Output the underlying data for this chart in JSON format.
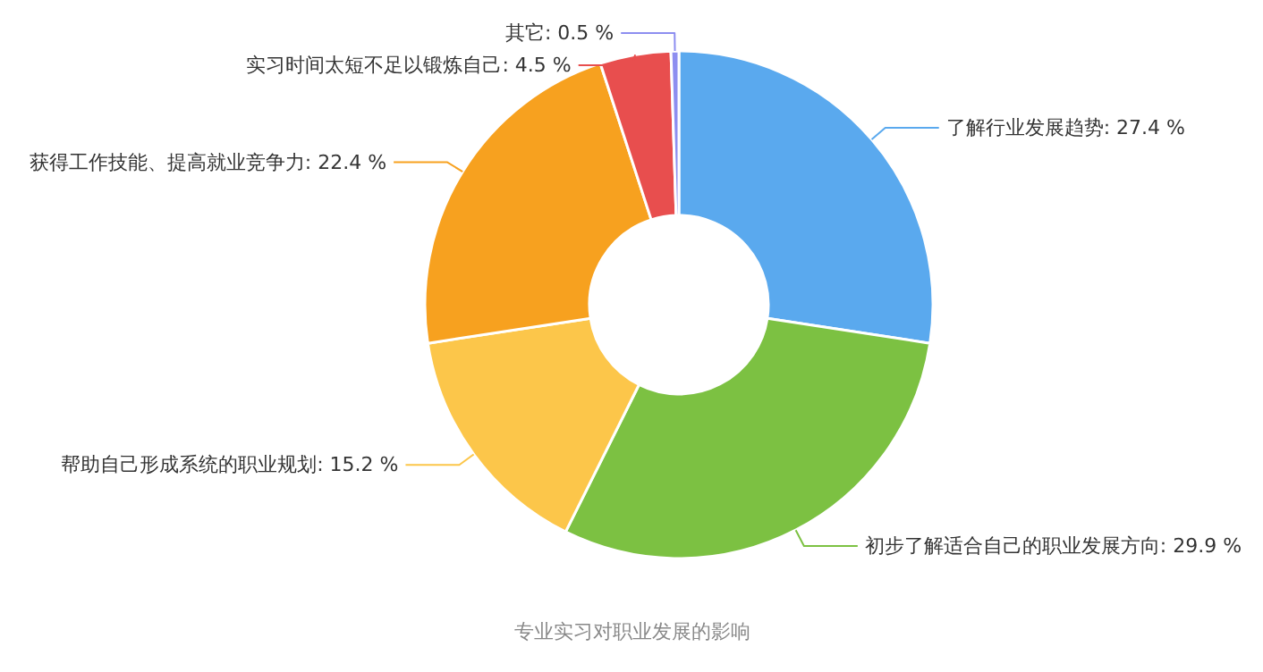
{
  "chart_data": {
    "type": "donut",
    "title": "专业实习对职业发展的影响",
    "categories": [
      "了解行业发展趋势",
      "初步了解适合自己的职业发展方向",
      "帮助自己形成系统的职业规划",
      "获得工作技能、提高就业竞争力",
      "实习时间太短不足以锻炼自己",
      "其它"
    ],
    "values": [
      27.4,
      29.9,
      15.2,
      22.4,
      4.5,
      0.5
    ],
    "value_labels": [
      "27.4 %",
      "29.9 %",
      "15.2 %",
      "22.4 %",
      "4.5 %",
      "0.5 %"
    ],
    "colors": [
      "#5aa9ee",
      "#7cc142",
      "#fcc64a",
      "#f7a11f",
      "#e84e4e",
      "#8d8ef0"
    ]
  }
}
